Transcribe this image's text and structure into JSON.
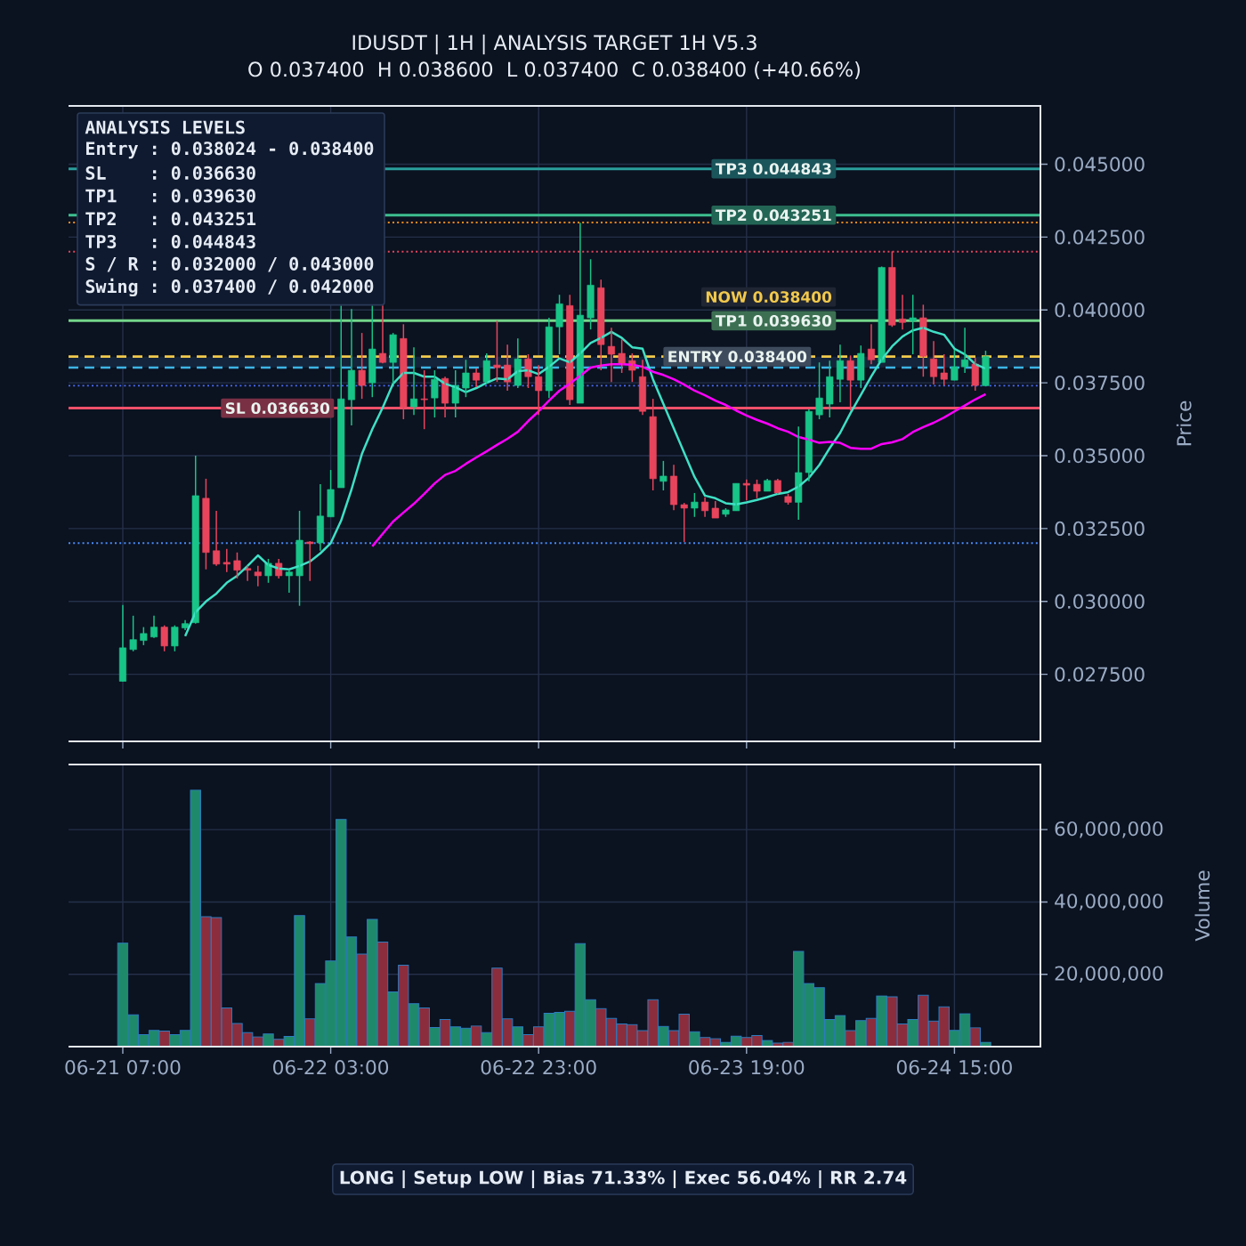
{
  "chart_data": [
    {
      "type": "candlestick",
      "title": "IDUSDT | 1H | ANALYSIS TARGET 1H V5.3",
      "subtitle": "O 0.037400  H 0.038600  L 0.037400  C 0.038400 (+40.66%)",
      "ylabel": "Price",
      "categories": [
        null,
        null,
        null,
        null,
        null,
        null,
        null,
        null,
        null,
        null,
        null,
        null,
        null,
        null,
        null,
        null,
        null,
        null,
        null,
        null,
        null,
        null,
        null,
        null,
        null,
        null,
        null,
        null,
        null,
        null,
        null,
        null,
        null,
        null,
        null,
        null,
        null,
        null,
        null,
        null,
        null,
        null,
        null,
        null,
        null,
        null,
        null,
        null,
        null,
        null,
        null,
        null,
        null,
        null,
        null,
        null,
        null,
        null,
        null,
        null,
        null,
        null,
        null,
        null,
        null,
        null,
        null,
        null,
        null,
        null,
        null,
        null,
        null,
        null,
        null,
        null,
        null,
        null,
        null,
        null,
        null,
        null,
        null,
        null
      ],
      "ohlc": [
        [
          0.02726,
          0.02988,
          0.02725,
          0.02841
        ],
        [
          0.02835,
          0.02951,
          0.02829,
          0.02869
        ],
        [
          0.02866,
          0.02912,
          0.0285,
          0.0289
        ],
        [
          0.02878,
          0.02951,
          0.02875,
          0.02912
        ],
        [
          0.02912,
          0.02918,
          0.02829,
          0.02847
        ],
        [
          0.02847,
          0.02918,
          0.02829,
          0.02912
        ],
        [
          0.02909,
          0.02936,
          0.02902,
          0.02924
        ],
        [
          0.02927,
          0.035,
          0.02924,
          0.03363
        ],
        [
          0.03354,
          0.03421,
          0.0311,
          0.03168
        ],
        [
          0.03174,
          0.03311,
          0.03122,
          0.03128
        ],
        [
          0.03134,
          0.0318,
          0.03101,
          0.03128
        ],
        [
          0.0314,
          0.03168,
          0.03079,
          0.03107
        ],
        [
          0.03113,
          0.03122,
          0.0307,
          0.03107
        ],
        [
          0.03101,
          0.03122,
          0.03052,
          0.03088
        ],
        [
          0.03088,
          0.03146,
          0.03064,
          0.03131
        ],
        [
          0.03131,
          0.03146,
          0.03079,
          0.03088
        ],
        [
          0.03088,
          0.0311,
          0.0303,
          0.03101
        ],
        [
          0.03088,
          0.03311,
          0.02985,
          0.0321
        ],
        [
          0.03204,
          0.03207,
          0.0307,
          0.03198
        ],
        [
          0.03201,
          0.03402,
          0.03174,
          0.03293
        ],
        [
          0.0329,
          0.03451,
          0.0329,
          0.03384
        ],
        [
          0.0339,
          0.04015,
          0.0339,
          0.03695
        ],
        [
          0.03692,
          0.04003,
          0.03604,
          0.03793
        ],
        [
          0.03793,
          0.03921,
          0.03695,
          0.03741
        ],
        [
          0.0375,
          0.04015,
          0.03701,
          0.03866
        ],
        [
          0.03851,
          0.04015,
          0.03817,
          0.0382
        ],
        [
          0.0382,
          0.03921,
          0.03747,
          0.03915
        ],
        [
          0.03902,
          0.03951,
          0.03625,
          0.03668
        ],
        [
          0.03668,
          0.03872,
          0.0364,
          0.03695
        ],
        [
          0.03695,
          0.03793,
          0.03591,
          0.03692
        ],
        [
          0.03698,
          0.03793,
          0.03631,
          0.03762
        ],
        [
          0.03765,
          0.03771,
          0.03631,
          0.0368
        ],
        [
          0.0368,
          0.03793,
          0.03631,
          0.03741
        ],
        [
          0.03732,
          0.03829,
          0.03701,
          0.03784
        ],
        [
          0.03784,
          0.03799,
          0.03735,
          0.03759
        ],
        [
          0.03753,
          0.03851,
          0.03747,
          0.03826
        ],
        [
          0.03811,
          0.03963,
          0.03753,
          0.03802
        ],
        [
          0.03811,
          0.03881,
          0.03723,
          0.03753
        ],
        [
          0.03741,
          0.03902,
          0.03732,
          0.03832
        ],
        [
          0.03832,
          0.03848,
          0.03732,
          0.03771
        ],
        [
          0.03771,
          0.03811,
          0.0364,
          0.03723
        ],
        [
          0.03723,
          0.03973,
          0.03698,
          0.03942
        ],
        [
          0.03942,
          0.04052,
          0.03848,
          0.04021
        ],
        [
          0.04015,
          0.04052,
          0.03674,
          0.03692
        ],
        [
          0.0368,
          0.04299,
          0.0368,
          0.03982
        ],
        [
          0.03973,
          0.04174,
          0.03933,
          0.04085
        ],
        [
          0.04076,
          0.04104,
          0.03793,
          0.03881
        ],
        [
          0.03875,
          0.03939,
          0.03753,
          0.03848
        ],
        [
          0.03851,
          0.03899,
          0.03784,
          0.03814
        ],
        [
          0.03826,
          0.03851,
          0.03753,
          0.03793
        ],
        [
          0.03771,
          0.03829,
          0.0364,
          0.03652
        ],
        [
          0.03634,
          0.03695,
          0.03381,
          0.03421
        ],
        [
          0.03412,
          0.03482,
          0.03381,
          0.0343
        ],
        [
          0.0343,
          0.03469,
          0.03313,
          0.03332
        ],
        [
          0.03332,
          0.03338,
          0.03204,
          0.0332
        ],
        [
          0.0332,
          0.03372,
          0.0329,
          0.03341
        ],
        [
          0.03341,
          0.03357,
          0.0329,
          0.03311
        ],
        [
          0.0332,
          0.03344,
          0.03286,
          0.03286
        ],
        [
          0.03299,
          0.0332,
          0.0329,
          0.03314
        ],
        [
          0.03311,
          0.03405,
          0.03311,
          0.03405
        ],
        [
          0.03405,
          0.03418,
          0.03347,
          0.03399
        ],
        [
          0.03402,
          0.03418,
          0.03354,
          0.03378
        ],
        [
          0.03378,
          0.03421,
          0.03378,
          0.03415
        ],
        [
          0.03415,
          0.03421,
          0.03369,
          0.03372
        ],
        [
          0.0336,
          0.03369,
          0.03332,
          0.0334
        ],
        [
          0.0334,
          0.036,
          0.0328,
          0.03442
        ],
        [
          0.03442,
          0.03659,
          0.03412,
          0.03652
        ],
        [
          0.0364,
          0.0382,
          0.03625,
          0.03698
        ],
        [
          0.03677,
          0.03826,
          0.03631,
          0.03771
        ],
        [
          0.03762,
          0.03881,
          0.03683,
          0.03826
        ],
        [
          0.03826,
          0.03844,
          0.03655,
          0.03759
        ],
        [
          0.03759,
          0.03878,
          0.03732,
          0.03851
        ],
        [
          0.03866,
          0.03951,
          0.03814,
          0.03829
        ],
        [
          0.0382,
          0.04149,
          0.0382,
          0.04146
        ],
        [
          0.04146,
          0.04201,
          0.03942,
          0.03948
        ],
        [
          0.03969,
          0.04052,
          0.03933,
          0.03957
        ],
        [
          0.03963,
          0.04052,
          0.03848,
          0.03973
        ],
        [
          0.03973,
          0.04018,
          0.03771,
          0.03841
        ],
        [
          0.03832,
          0.03893,
          0.03744,
          0.03771
        ],
        [
          0.03784,
          0.03848,
          0.03741,
          0.03762
        ],
        [
          0.03759,
          0.03863,
          0.03759,
          0.03805
        ],
        [
          0.03805,
          0.03939,
          0.03784,
          0.03829
        ],
        [
          0.03814,
          0.03835,
          0.03723,
          0.03741
        ],
        [
          0.0374,
          0.0386,
          0.0374,
          0.0384
        ]
      ],
      "colors": [
        "#18c487",
        "#18c487",
        "#18c487",
        "#18c487",
        "#e8455c",
        "#18c487",
        "#18c487",
        "#18c487",
        "#e8455c",
        "#e8455c",
        "#e8455c",
        "#e8455c",
        "#e8455c",
        "#e8455c",
        "#18c487",
        "#e8455c",
        "#18c487",
        "#18c487",
        "#e8455c",
        "#18c487",
        "#18c487",
        "#18c487",
        "#18c487",
        "#e8455c",
        "#18c487",
        "#e8455c",
        "#18c487",
        "#e8455c",
        "#18c487",
        "#e8455c",
        "#18c487",
        "#e8455c",
        "#18c487",
        "#18c487",
        "#e8455c",
        "#18c487",
        "#e8455c",
        "#e8455c",
        "#18c487",
        "#e8455c",
        "#e8455c",
        "#18c487",
        "#18c487",
        "#e8455c",
        "#18c487",
        "#18c487",
        "#e8455c",
        "#e8455c",
        "#e8455c",
        "#e8455c",
        "#e8455c",
        "#e8455c",
        "#18c487",
        "#e8455c",
        "#e8455c",
        "#18c487",
        "#e8455c",
        "#e8455c",
        "#18c487",
        "#18c487",
        "#e8455c",
        "#e8455c",
        "#18c487",
        "#e8455c",
        "#e8455c",
        "#18c487",
        "#18c487",
        "#18c487",
        "#18c487",
        "#18c487",
        "#e8455c",
        "#18c487",
        "#e8455c",
        "#18c487",
        "#e8455c",
        "#e8455c",
        "#18c487",
        "#e8455c",
        "#e8455c",
        "#e8455c",
        "#18c487",
        "#18c487",
        "#e8455c",
        "#18c487"
      ],
      "series": [
        {
          "type": "line",
          "color": "#3fe0c5",
          "values": [
            null,
            null,
            null,
            null,
            null,
            null,
            0.02881,
            0.02963,
            0.03,
            0.03027,
            0.03064,
            0.03088,
            0.03122,
            0.03158,
            0.03125,
            0.03113,
            0.0311,
            0.03122,
            0.03137,
            0.03165,
            0.032,
            0.03277,
            0.03384,
            0.03506,
            0.03591,
            0.03665,
            0.03747,
            0.03784,
            0.03784,
            0.03771,
            0.03771,
            0.03747,
            0.03735,
            0.03718,
            0.03732,
            0.0375,
            0.03765,
            0.03762,
            0.0379,
            0.03793,
            0.0378,
            0.03805,
            0.03834,
            0.0382,
            0.03851,
            0.03887,
            0.03904,
            0.03925,
            0.03904,
            0.03872,
            0.03867,
            0.03762,
            0.03678,
            0.03594,
            0.0351,
            0.03427,
            0.03363,
            0.03354,
            0.03337,
            0.03333,
            0.0334,
            0.03348,
            0.03358,
            0.03369,
            0.03375,
            0.03394,
            0.03424,
            0.03468,
            0.03526,
            0.03578,
            0.03646,
            0.03709,
            0.03772,
            0.0383,
            0.03875,
            0.03909,
            0.0393,
            0.03939,
            0.03925,
            0.03915,
            0.03867,
            0.03848,
            0.03814,
            0.03799
          ]
        },
        {
          "type": "line",
          "color": "#ff00ff",
          "values": [
            null,
            null,
            null,
            null,
            null,
            null,
            null,
            null,
            null,
            null,
            null,
            null,
            null,
            null,
            null,
            null,
            null,
            null,
            null,
            null,
            null,
            null,
            null,
            null,
            0.03189,
            0.03232,
            0.03274,
            0.03305,
            0.03335,
            0.03369,
            0.03405,
            0.03434,
            0.03448,
            0.03472,
            0.03494,
            0.03515,
            0.03537,
            0.03558,
            0.03582,
            0.03619,
            0.03652,
            0.03689,
            0.03723,
            0.03747,
            0.03774,
            0.03802,
            0.03809,
            0.03814,
            0.03814,
            0.03812,
            0.03805,
            0.03788,
            0.03777,
            0.03762,
            0.03744,
            0.03723,
            0.03707,
            0.03689,
            0.03674,
            0.03655,
            0.03638,
            0.03623,
            0.0361,
            0.03594,
            0.03582,
            0.03564,
            0.03555,
            0.03544,
            0.03547,
            0.03544,
            0.03527,
            0.03524,
            0.03524,
            0.0354,
            0.03546,
            0.03557,
            0.03581,
            0.03598,
            0.03613,
            0.03631,
            0.03652,
            0.03672,
            0.03693,
            0.03711
          ]
        }
      ],
      "ylim": [
        0.0252,
        0.047
      ],
      "yticks": [
        {
          "value": 0.0275,
          "label": "0.027500"
        },
        {
          "value": 0.03,
          "label": "0.030000"
        },
        {
          "value": 0.0325,
          "label": "0.032500"
        },
        {
          "value": 0.035,
          "label": "0.035000"
        },
        {
          "value": 0.0375,
          "label": "0.037500"
        },
        {
          "value": 0.04,
          "label": "0.040000"
        },
        {
          "value": 0.0425,
          "label": "0.042500"
        },
        {
          "value": 0.045,
          "label": "0.045000"
        }
      ],
      "tick_labels": "y",
      "grid": true,
      "bands": [
        {
          "axis": "y",
          "from": 0.038024,
          "to": 0.0384,
          "label": "ENTRY 0.038400",
          "color": "#14243a"
        }
      ],
      "ref_lines": [
        {
          "axis": "y",
          "value": 0.044843,
          "label": "TP3 0.044843",
          "color": "#2a9d9a"
        },
        {
          "axis": "y",
          "value": 0.043251,
          "label": "TP2 0.043251",
          "color": "#3dbf8f"
        },
        {
          "axis": "y",
          "value": 0.043,
          "color": "#ff8c1a",
          "line_style": "dotted"
        },
        {
          "axis": "y",
          "value": 0.042,
          "color": "#e8435a",
          "line_style": "dotted"
        },
        {
          "axis": "y",
          "value": 0.03963,
          "label": "TP1 0.039630",
          "color": "#74d68a"
        },
        {
          "axis": "y",
          "value": 0.0384,
          "label": "NOW 0.038400",
          "color": "#f2c94c",
          "line_style": "dashed"
        },
        {
          "axis": "y",
          "value": 0.038024,
          "color": "#3cb4e5",
          "line_style": "dashed"
        },
        {
          "axis": "y",
          "value": 0.0374,
          "color": "#4a6cf7",
          "line_style": "dotted"
        },
        {
          "axis": "y",
          "value": 0.03663,
          "label": "SL 0.036630",
          "color": "#f0506a"
        },
        {
          "axis": "y",
          "value": 0.032,
          "color": "#4a8cf7",
          "line_style": "dotted"
        }
      ],
      "annotations": [
        "ANALYSIS LEVELS",
        "Entry : 0.038024 - 0.038400",
        "SL    : 0.036630",
        "TP1   : 0.039630",
        "TP2   : 0.043251",
        "TP3   : 0.044843",
        "S / R : 0.032000 / 0.043000",
        "Swing : 0.037400 / 0.042000"
      ]
    },
    {
      "type": "bar",
      "ylabel": "Volume",
      "categories": [
        "06-21 07:00",
        null,
        null,
        null,
        null,
        null,
        null,
        null,
        null,
        null,
        null,
        null,
        null,
        null,
        null,
        null,
        null,
        null,
        null,
        null,
        "06-22 03:00",
        null,
        null,
        null,
        null,
        null,
        null,
        null,
        null,
        null,
        null,
        null,
        null,
        null,
        null,
        null,
        null,
        null,
        null,
        null,
        "06-22 23:00",
        null,
        null,
        null,
        null,
        null,
        null,
        null,
        null,
        null,
        null,
        null,
        null,
        null,
        null,
        null,
        null,
        null,
        null,
        null,
        "06-23 19:00",
        null,
        null,
        null,
        null,
        null,
        null,
        null,
        null,
        null,
        null,
        null,
        null,
        null,
        null,
        null,
        null,
        null,
        null,
        null,
        "06-24 15:00",
        null,
        null,
        null
      ],
      "values": [
        28600000,
        8800000,
        3300000,
        4500000,
        4300000,
        3300000,
        4500000,
        70900000,
        35900000,
        35700000,
        10700000,
        6400000,
        3900000,
        2700000,
        3500000,
        2000000,
        2800000,
        36200000,
        7700000,
        17500000,
        23700000,
        62800000,
        30300000,
        25600000,
        35200000,
        28900000,
        15100000,
        22500000,
        11900000,
        10700000,
        5300000,
        7500000,
        5500000,
        5100000,
        5700000,
        3900000,
        21700000,
        7700000,
        5500000,
        3300000,
        5500000,
        9200000,
        9500000,
        9800000,
        28500000,
        13000000,
        10500000,
        7800000,
        6300000,
        6100000,
        4400000,
        13000000,
        5600000,
        4400000,
        9000000,
        4100000,
        2500000,
        2200000,
        1200000,
        2900000,
        2500000,
        3100000,
        1700000,
        1000000,
        1200000,
        26300000,
        17500000,
        16300000,
        7500000,
        8600000,
        4400000,
        7200000,
        7800000,
        14000000,
        13800000,
        6300000,
        7500000,
        14200000,
        7100000,
        11000000,
        4500000,
        9100000,
        5200000,
        1200000
      ],
      "colors": [
        "#1f8a6b",
        "#1f8a6b",
        "#1f8a6b",
        "#1f8a6b",
        "#8b2d3d",
        "#1f8a6b",
        "#1f8a6b",
        "#1f8a6b",
        "#8b2d3d",
        "#8b2d3d",
        "#8b2d3d",
        "#8b2d3d",
        "#8b2d3d",
        "#8b2d3d",
        "#1f8a6b",
        "#8b2d3d",
        "#1f8a6b",
        "#1f8a6b",
        "#8b2d3d",
        "#1f8a6b",
        "#1f8a6b",
        "#1f8a6b",
        "#1f8a6b",
        "#8b2d3d",
        "#1f8a6b",
        "#8b2d3d",
        "#1f8a6b",
        "#8b2d3d",
        "#1f8a6b",
        "#8b2d3d",
        "#1f8a6b",
        "#8b2d3d",
        "#1f8a6b",
        "#1f8a6b",
        "#8b2d3d",
        "#1f8a6b",
        "#8b2d3d",
        "#8b2d3d",
        "#1f8a6b",
        "#8b2d3d",
        "#8b2d3d",
        "#1f8a6b",
        "#1f8a6b",
        "#8b2d3d",
        "#1f8a6b",
        "#1f8a6b",
        "#8b2d3d",
        "#8b2d3d",
        "#8b2d3d",
        "#8b2d3d",
        "#8b2d3d",
        "#8b2d3d",
        "#1f8a6b",
        "#8b2d3d",
        "#8b2d3d",
        "#1f8a6b",
        "#8b2d3d",
        "#8b2d3d",
        "#1f8a6b",
        "#1f8a6b",
        "#8b2d3d",
        "#8b2d3d",
        "#1f8a6b",
        "#8b2d3d",
        "#8b2d3d",
        "#1f8a6b",
        "#1f8a6b",
        "#1f8a6b",
        "#1f8a6b",
        "#1f8a6b",
        "#8b2d3d",
        "#1f8a6b",
        "#8b2d3d",
        "#1f8a6b",
        "#8b2d3d",
        "#8b2d3d",
        "#1f8a6b",
        "#8b2d3d",
        "#8b2d3d",
        "#8b2d3d",
        "#1f8a6b",
        "#1f8a6b",
        "#8b2d3d",
        "#1f8a6b"
      ],
      "ylim": [
        0,
        78000000
      ],
      "yticks": [
        {
          "value": 20000000,
          "label": "20,000,000"
        },
        {
          "value": 40000000,
          "label": "40,000,000"
        },
        {
          "value": 60000000,
          "label": "60,000,000"
        }
      ],
      "grid": true,
      "annotations": [
        "LONG | Setup LOW | Bias 71.33% | Exec 56.04% | RR 2.74"
      ]
    }
  ]
}
